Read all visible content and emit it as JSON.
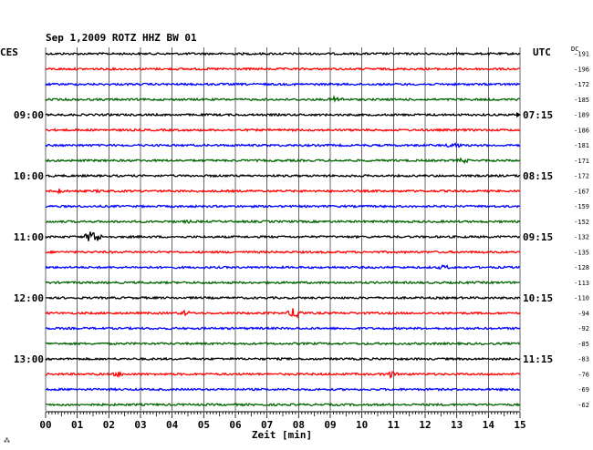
{
  "chart_data": {
    "type": "line",
    "title": "Sep 1,2009   ROTZ HHZ BW 01",
    "xlabel": "Zeit [min]",
    "left_timezone": "CES",
    "right_timezone": "UTC",
    "dc_header": "DC",
    "xlim": [
      0,
      15
    ],
    "x_ticks": [
      "00",
      "01",
      "02",
      "03",
      "04",
      "05",
      "06",
      "07",
      "08",
      "09",
      "10",
      "11",
      "12",
      "13",
      "14",
      "15"
    ],
    "left_time_labels": [
      {
        "trace": 4,
        "text": "09:00"
      },
      {
        "trace": 8,
        "text": "10:00"
      },
      {
        "trace": 12,
        "text": "11:00"
      },
      {
        "trace": 16,
        "text": "12:00"
      },
      {
        "trace": 20,
        "text": "13:00"
      }
    ],
    "right_time_labels": [
      {
        "trace": 4,
        "text": "07:15"
      },
      {
        "trace": 8,
        "text": "08:15"
      },
      {
        "trace": 12,
        "text": "09:15"
      },
      {
        "trace": 16,
        "text": "10:15"
      },
      {
        "trace": 20,
        "text": "11:15"
      }
    ],
    "trace_colors": [
      "#000000",
      "#ff0000",
      "#0000ff",
      "#006400"
    ],
    "dc_offsets": [
      "-191",
      "-196",
      "-172",
      "-185",
      "-189",
      "-186",
      "-181",
      "-171",
      "-172",
      "-167",
      "-159",
      "-152",
      "-132",
      "-135",
      "-128",
      "-113",
      "-110",
      "-94",
      "-92",
      "-85",
      "-83",
      "-76",
      "-69",
      "-62"
    ],
    "events": [
      {
        "trace": 3,
        "minute": 9.2,
        "amp": 4
      },
      {
        "trace": 6,
        "minute": 12.9,
        "amp": 4
      },
      {
        "trace": 7,
        "minute": 13.2,
        "amp": 3
      },
      {
        "trace": 9,
        "minute": 0.4,
        "amp": 3
      },
      {
        "trace": 9,
        "minute": 1.7,
        "amp": 2
      },
      {
        "trace": 11,
        "minute": 4.5,
        "amp": 2
      },
      {
        "trace": 12,
        "minute": 1.5,
        "amp": 9
      },
      {
        "trace": 14,
        "minute": 12.6,
        "amp": 3
      },
      {
        "trace": 17,
        "minute": 7.9,
        "amp": 7
      },
      {
        "trace": 17,
        "minute": 4.4,
        "amp": 3
      },
      {
        "trace": 21,
        "minute": 10.9,
        "amp": 4
      },
      {
        "trace": 21,
        "minute": 2.3,
        "amp": 3
      }
    ]
  }
}
